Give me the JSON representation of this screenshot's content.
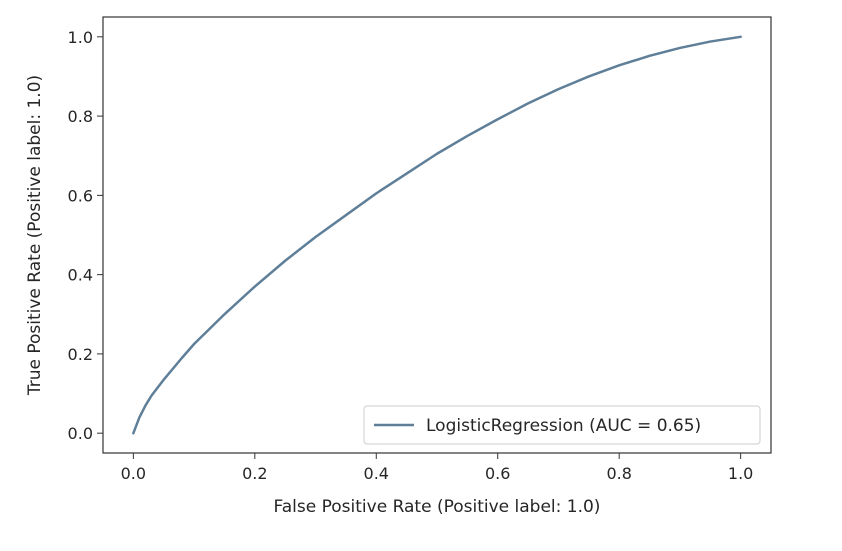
{
  "chart_data": {
    "type": "line",
    "title": "",
    "xlabel": "False Positive Rate (Positive label: 1.0)",
    "ylabel": "True Positive Rate (Positive label: 1.0)",
    "xlim": [
      -0.05,
      1.05
    ],
    "ylim": [
      -0.05,
      1.05
    ],
    "xticks": [
      0.0,
      0.2,
      0.4,
      0.6,
      0.8,
      1.0
    ],
    "yticks": [
      0.0,
      0.2,
      0.4,
      0.6,
      0.8,
      1.0
    ],
    "xtick_labels": [
      "0.0",
      "0.2",
      "0.4",
      "0.6",
      "0.8",
      "1.0"
    ],
    "ytick_labels": [
      "0.0",
      "0.2",
      "0.4",
      "0.6",
      "0.8",
      "1.0"
    ],
    "grid": false,
    "legend_position": "lower-right",
    "series": [
      {
        "name": "LogisticRegression (AUC = 0.65)",
        "color": "#5f7f99",
        "x": [
          0.0,
          0.01,
          0.02,
          0.03,
          0.05,
          0.08,
          0.1,
          0.15,
          0.2,
          0.25,
          0.3,
          0.35,
          0.4,
          0.45,
          0.5,
          0.55,
          0.6,
          0.65,
          0.7,
          0.75,
          0.8,
          0.85,
          0.9,
          0.95,
          1.0
        ],
        "y": [
          0.0,
          0.04,
          0.07,
          0.095,
          0.135,
          0.19,
          0.225,
          0.3,
          0.37,
          0.435,
          0.495,
          0.55,
          0.605,
          0.655,
          0.705,
          0.75,
          0.792,
          0.832,
          0.868,
          0.9,
          0.928,
          0.952,
          0.972,
          0.988,
          1.0
        ]
      }
    ]
  }
}
